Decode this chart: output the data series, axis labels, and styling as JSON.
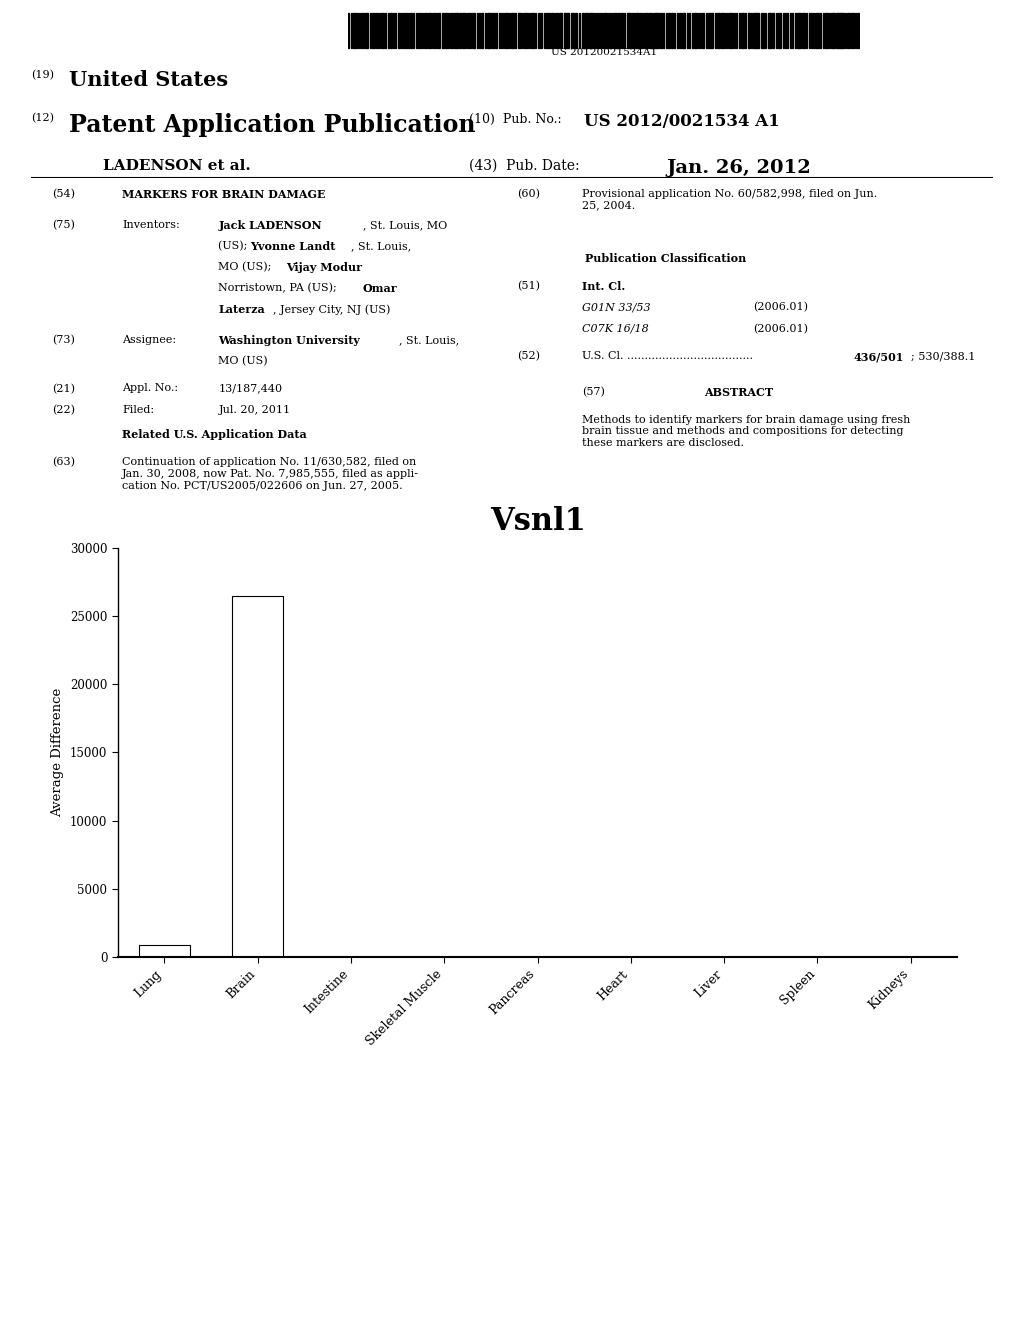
{
  "title": "Vsnl1",
  "ylabel": "Average Difference",
  "categories": [
    "Lung",
    "Brain",
    "Intestine",
    "Skeletal Muscle",
    "Pancreas",
    "Heart",
    "Liver",
    "Spleen",
    "Kidneys"
  ],
  "values": [
    900,
    26500,
    0,
    0,
    0,
    0,
    0,
    0,
    0
  ],
  "ylim": [
    0,
    30000
  ],
  "yticks": [
    0,
    5000,
    10000,
    15000,
    20000,
    25000,
    30000
  ],
  "bar_color": "#ffffff",
  "bar_edgecolor": "#000000",
  "background_color": "#ffffff",
  "barcode_text": "US 20120021534A1",
  "abstract_text": "Methods to identify markers for brain damage using fresh\nbrain tissue and methods and compositions for detecting\nthese markers are disclosed.",
  "title_chart_fontsize": 22,
  "ylabel_fontsize": 10
}
